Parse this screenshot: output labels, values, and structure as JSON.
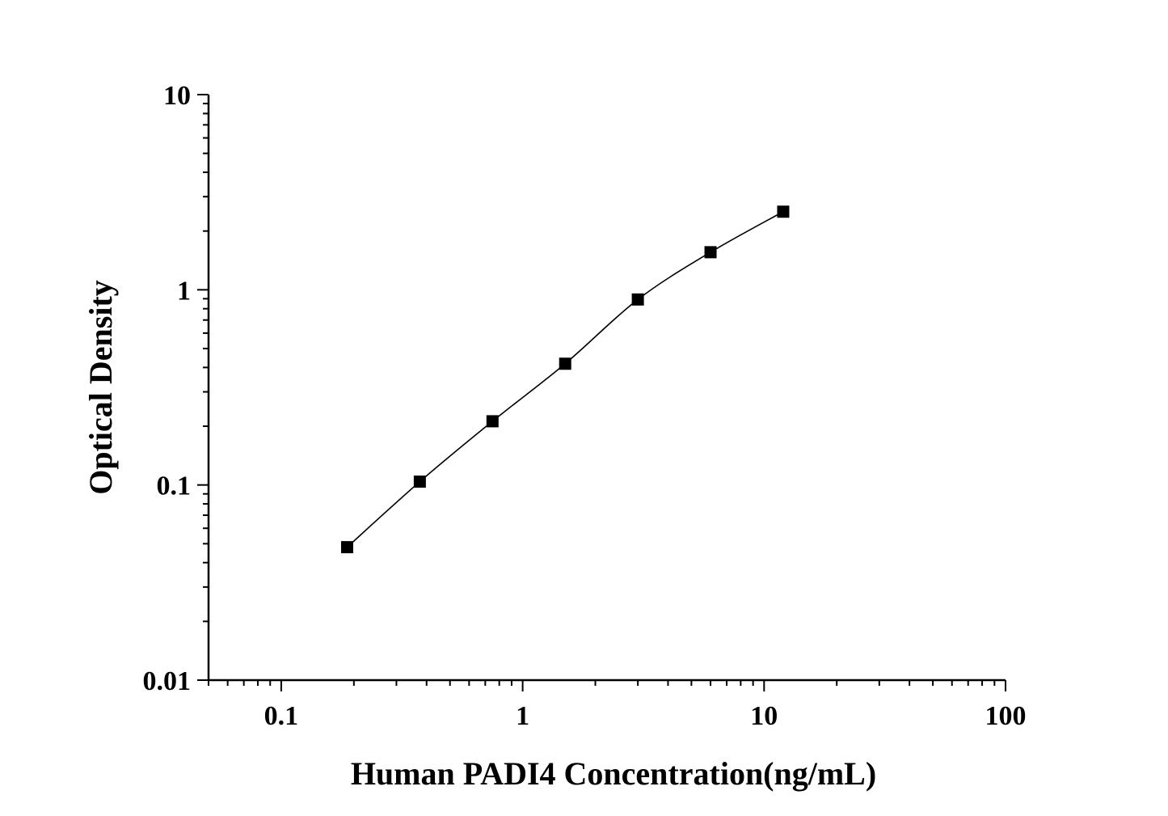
{
  "chart_data": {
    "type": "scatter",
    "title": "",
    "xlabel": "Human PADI4 Concentration(ng/mL)",
    "ylabel": "Optical Density",
    "x_scale": "log",
    "y_scale": "log",
    "xlim": [
      0.05,
      100
    ],
    "ylim": [
      0.01,
      10
    ],
    "x_ticks": [
      {
        "value": 0.1,
        "label": "0.1"
      },
      {
        "value": 1,
        "label": "1"
      },
      {
        "value": 10,
        "label": "10"
      },
      {
        "value": 100,
        "label": "100"
      }
    ],
    "y_ticks": [
      {
        "value": 0.01,
        "label": "0.01"
      },
      {
        "value": 0.1,
        "label": "0.1"
      },
      {
        "value": 1,
        "label": "1"
      },
      {
        "value": 10,
        "label": "10"
      }
    ],
    "grid": false,
    "legend": "none",
    "series": [
      {
        "x": [
          0.1875,
          0.375,
          0.75,
          1.5,
          3,
          6,
          12
        ],
        "y": [
          0.048,
          0.104,
          0.212,
          0.418,
          0.892,
          1.558,
          2.513
        ],
        "marker": "square",
        "line": "smooth",
        "color": "#000000"
      }
    ]
  }
}
